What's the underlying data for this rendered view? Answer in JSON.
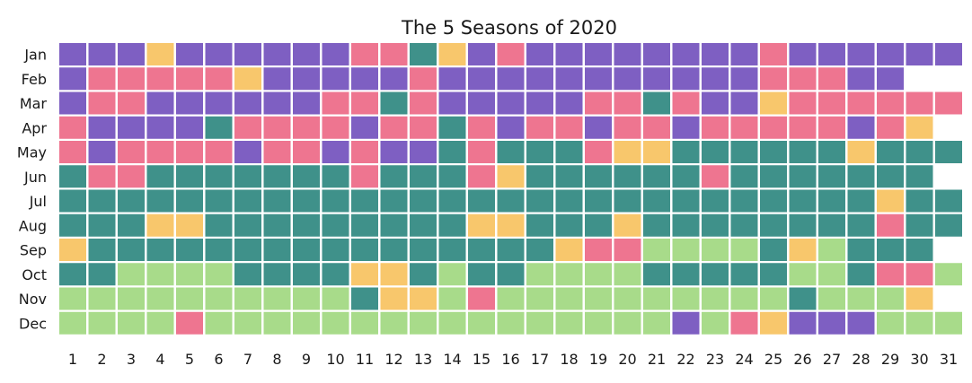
{
  "chart_data": {
    "type": "heatmap",
    "title": "The 5 Seasons of 2020",
    "xlabel": "",
    "ylabel": "",
    "x_ticks": [
      "1",
      "2",
      "3",
      "4",
      "5",
      "6",
      "7",
      "8",
      "9",
      "10",
      "11",
      "12",
      "13",
      "14",
      "15",
      "16",
      "17",
      "18",
      "19",
      "20",
      "21",
      "22",
      "23",
      "24",
      "25",
      "26",
      "27",
      "28",
      "29",
      "30",
      "31"
    ],
    "y_ticks": [
      "Jan",
      "Feb",
      "Mar",
      "Apr",
      "May",
      "Jun",
      "Jul",
      "Aug",
      "Sep",
      "Oct",
      "Nov",
      "Dec"
    ],
    "legend": "none",
    "grid": false,
    "palette": {
      "P": "#7e5fc2",
      "K": "#ee7590",
      "Y": "#f8c76c",
      "T": "#3f918a",
      "G": "#a8db8a"
    },
    "cells": [
      "PPPYPPPPPPKKTYPKPPPPPPPPKPPPPPP",
      "PKKKKKYPPPPPKPPPPPPPPPPPKKKPP",
      "PKKPPPPPPKKTKPPPPPKKTKPPYKKKKKK",
      "KPPPPTKKKKPKKTKPKKPKKPKKKKKPKY",
      "KPKKKKPKKPKPPTKTTTKYYTTTTTTYTTT",
      "TKKTTTTTTTKTTTKYTTTTTTKTTTTTTT",
      "TTTTTTTTTTTTTTTTTTTTTTTTTTTTYTT",
      "TTTYYTTTTTTTTTYYTTTYTTTTTTTTKTT",
      "YTTTTTTTTTTTTTTTTYKKGGGGTYGTTT",
      "TTGGGGTTTTYYTGTTGGGGTTTTTGGTKKG",
      "GGGGGGGGGGTYYGKGGGGGGGGGGTGGGY",
      "GGGGKGGGGGGGGGGGGGGGGPGKYPPPGGG"
    ]
  }
}
